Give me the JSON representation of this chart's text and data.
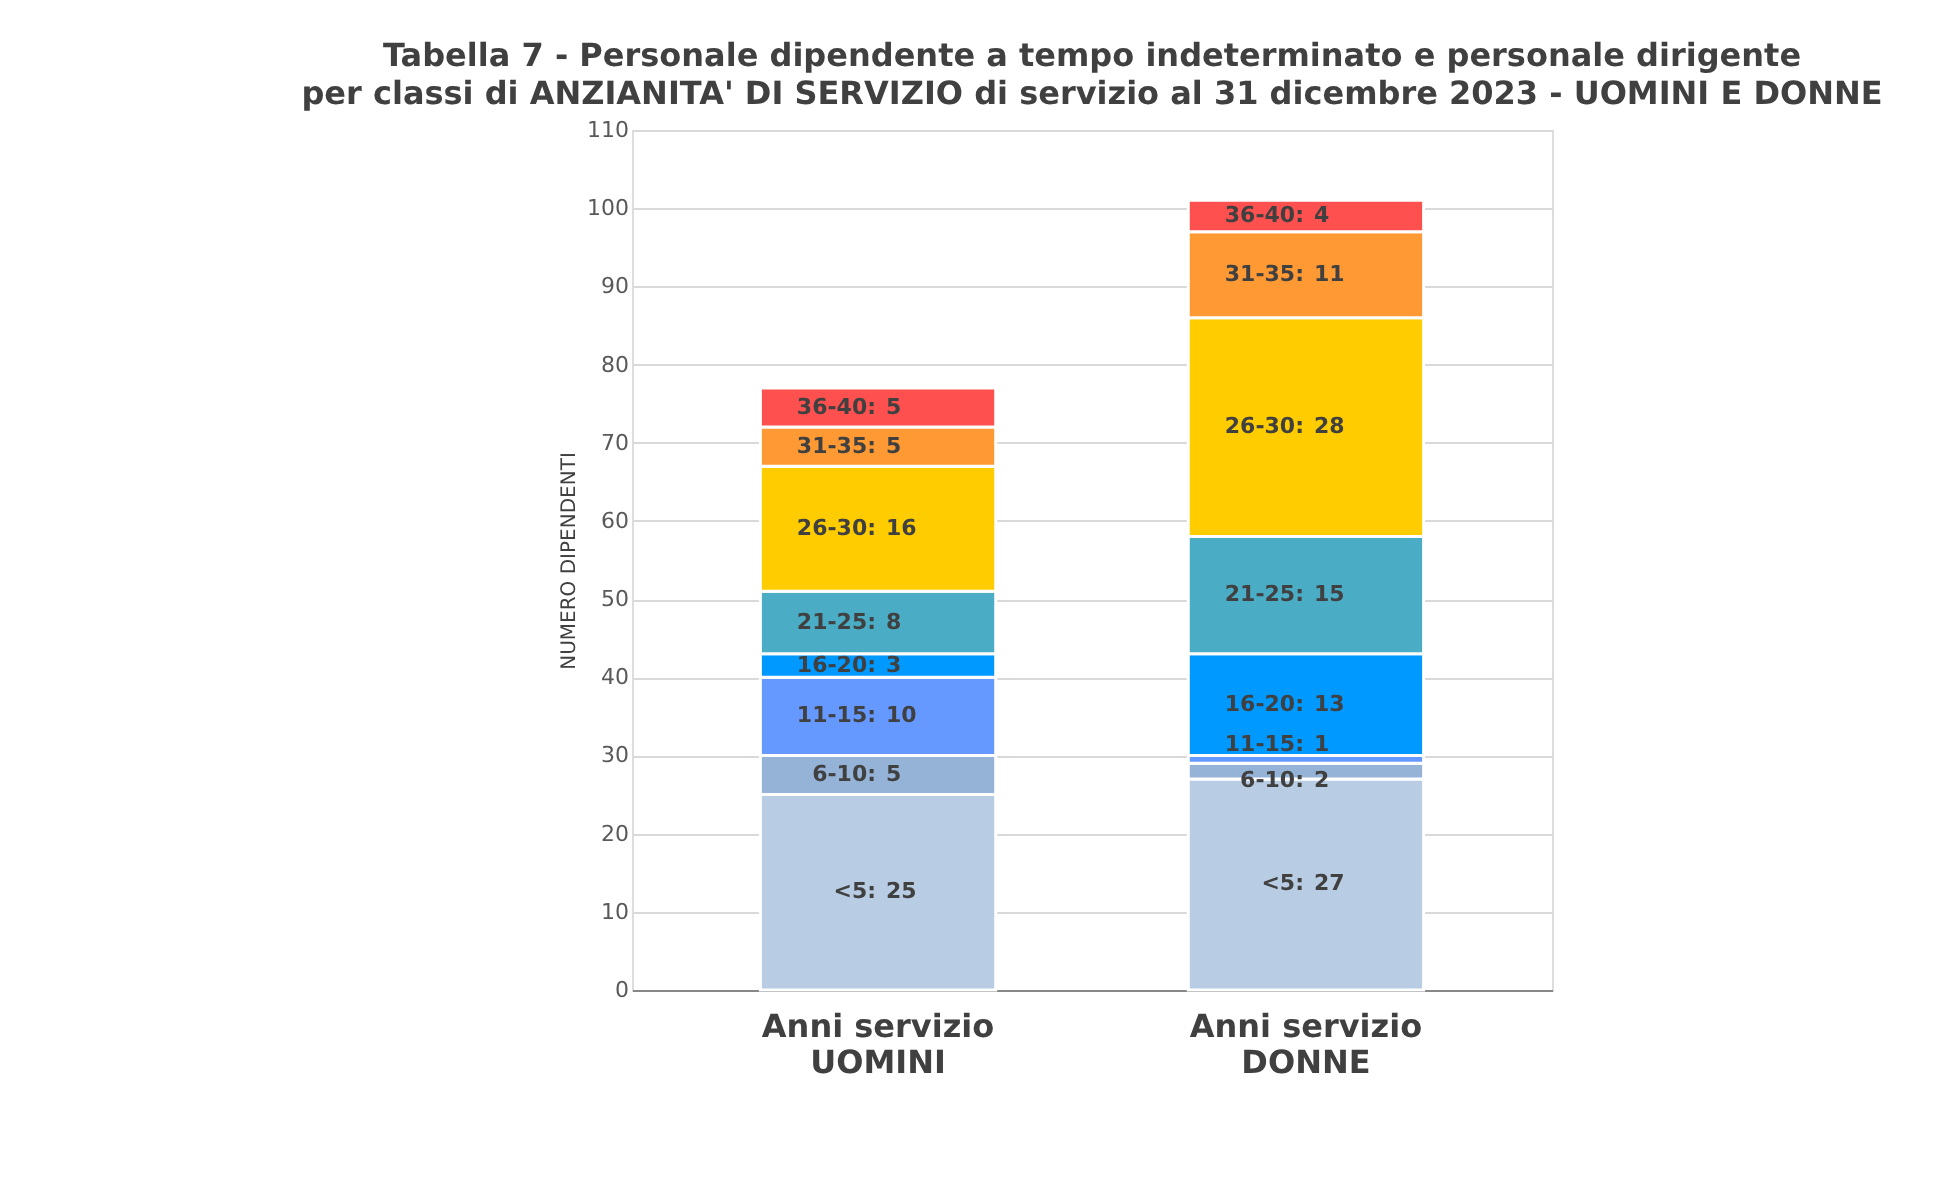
{
  "chart_data": {
    "type": "bar",
    "title": "Tabella 7 - Personale dipendente a tempo indeterminato e personale dirigente",
    "subtitle": "per classi di ANZIANITA' DI SERVIZIO di servizio al 31 dicembre 2023 - UOMINI E DONNE",
    "ylabel": "NUMERO DIPENDENTI",
    "categories": [
      "Anni servizio UOMINI",
      "Anni servizio DONNE"
    ],
    "stacked": true,
    "data_labels": true,
    "grid": "y",
    "legend": false,
    "ylim": [
      0,
      110
    ],
    "yticks": [
      0,
      10,
      20,
      30,
      40,
      50,
      60,
      70,
      80,
      90,
      100,
      110
    ],
    "series": [
      {
        "name": "<5:",
        "color": "#b8cce4",
        "values": [
          25,
          27
        ]
      },
      {
        "name": "6-10:",
        "color": "#95b3d7",
        "values": [
          5,
          2
        ]
      },
      {
        "name": "11-15:",
        "color": "#6699ff",
        "values": [
          10,
          1
        ]
      },
      {
        "name": "16-20:",
        "color": "#0099ff",
        "values": [
          3,
          13
        ]
      },
      {
        "name": "21-25:",
        "color": "#4bacc6",
        "values": [
          8,
          15
        ]
      },
      {
        "name": "26-30:",
        "color": "#ffcc00",
        "values": [
          16,
          28
        ]
      },
      {
        "name": "31-35:",
        "color": "#ff9933",
        "values": [
          5,
          11
        ]
      },
      {
        "name": "36-40:",
        "color": "#ff5050",
        "values": [
          5,
          4
        ]
      }
    ]
  }
}
